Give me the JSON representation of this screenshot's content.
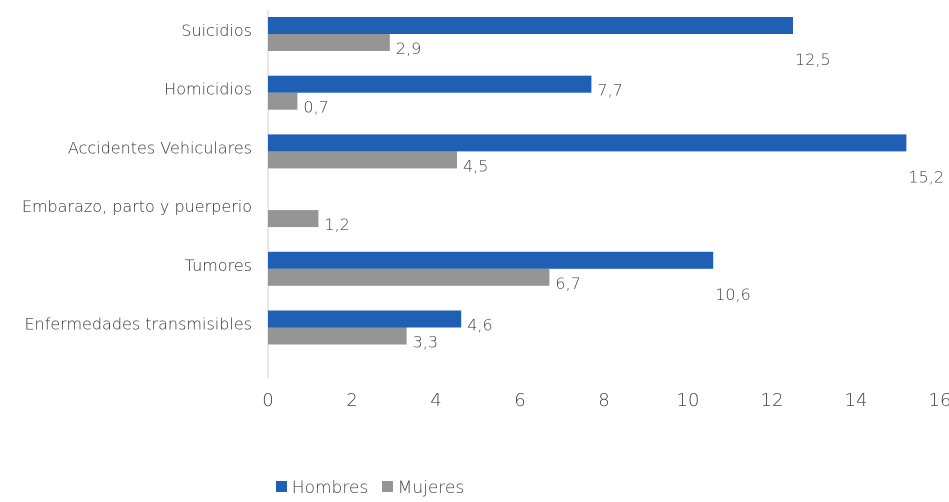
{
  "chart_data": {
    "type": "bar",
    "orientation": "horizontal",
    "categories": [
      "Suicidios",
      "Homicidios",
      "Accidentes Vehiculares",
      "Embarazo, parto y puerperio",
      "Tumores",
      "Enfermedades transmisibles"
    ],
    "series": [
      {
        "name": "Hombres",
        "color": "#1f5fb4",
        "values": [
          12.5,
          7.7,
          15.2,
          null,
          10.6,
          4.6
        ],
        "labels": [
          "12,5",
          "7,7",
          "15,2",
          "",
          "10,6",
          "4,6"
        ]
      },
      {
        "name": "Mujeres",
        "color": "#959595",
        "values": [
          2.9,
          0.7,
          4.5,
          1.2,
          6.7,
          3.3
        ],
        "labels": [
          "2,9",
          "0,7",
          "4,5",
          "1,2",
          "6,7",
          "3,3"
        ]
      }
    ],
    "xlim": [
      0,
      16
    ],
    "xticks": [
      "0",
      "2",
      "4",
      "6",
      "8",
      "10",
      "12",
      "14",
      "16"
    ],
    "grid": false,
    "legend_position": "bottom"
  },
  "legend": {
    "hombres": "Hombres",
    "mujeres": "Mujeres"
  }
}
